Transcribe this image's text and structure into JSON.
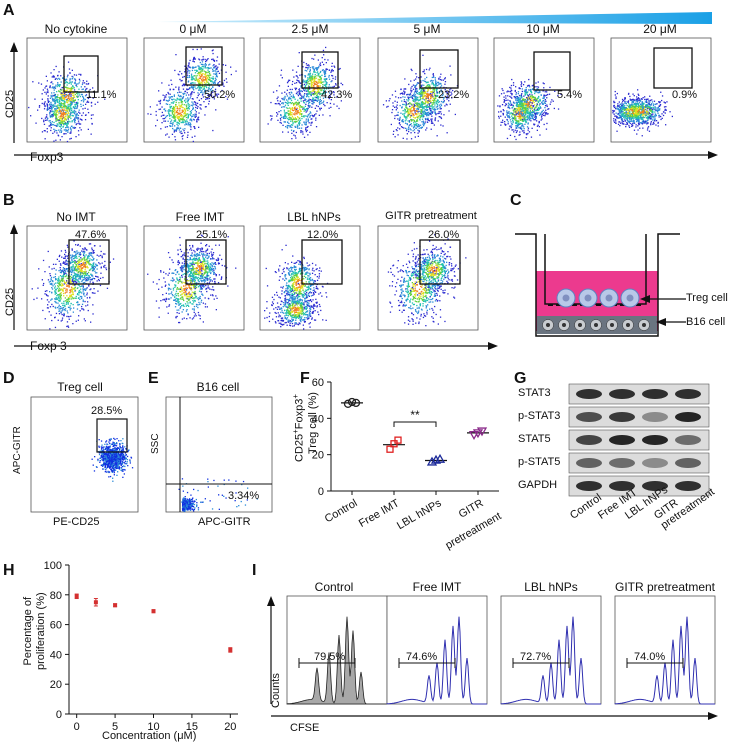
{
  "panel_labels": {
    "a": "A",
    "b": "B",
    "c": "C",
    "d": "D",
    "e": "E",
    "f": "F",
    "g": "G",
    "h": "H",
    "i": "I"
  },
  "panel_a": {
    "titles": [
      "No cytokine",
      "0 μM",
      "2.5 μM",
      "5 μM",
      "10 μM",
      "20 μM"
    ],
    "percents": [
      "11.1%",
      "50.2%",
      "42.3%",
      "23.2%",
      "5.4%",
      "0.9%"
    ],
    "ylabel": "CD25",
    "xlabel": "Foxp3"
  },
  "panel_b": {
    "titles": [
      "No IMT",
      "Free IMT",
      "LBL hNPs",
      "GITR pretreatment"
    ],
    "percents": [
      "47.6%",
      "25.1%",
      "12.0%",
      "26.0%"
    ],
    "ylabel": "CD25",
    "xlabel": "Foxp 3"
  },
  "panel_c": {
    "label_top": "Treg cell",
    "label_bottom": "B16 cell"
  },
  "panel_d": {
    "title": "Treg cell",
    "percent": "28.5%",
    "ylabel": "APC-GITR",
    "xlabel": "PE-CD25"
  },
  "panel_e": {
    "title": "B16 cell",
    "percent": "3.34%",
    "ylabel": "SSC",
    "xlabel": "APC-GITR"
  },
  "panel_g": {
    "rows": [
      "STAT3",
      "p-STAT3",
      "STAT5",
      "p-STAT5",
      "GAPDH"
    ],
    "cols": [
      "Control",
      "Free IMT",
      "LBL hNPs",
      "GITR pretreatment"
    ]
  },
  "panel_i": {
    "titles": [
      "Control",
      "Free IMT",
      "LBL hNPs",
      "GITR pretreatment"
    ],
    "percents": [
      "79.5%",
      "74.6%",
      "72.7%",
      "74.0%"
    ],
    "ylabel": "Counts",
    "xlabel": "CFSE"
  },
  "chart_data": [
    {
      "type": "scatter",
      "panel": "F",
      "title": "",
      "ylabel": "CD25+Foxp3+ Treg cell (%)",
      "ylabel_main": "CD25",
      "ylabel_sup1": "+",
      "ylabel_mid": "Foxp3",
      "ylabel_sup2": "+",
      "ylabel_line2": "Treg cell (%)",
      "categories": [
        "Control",
        "Free IMT",
        "LBL hNPs",
        "GITR\npretreatment"
      ],
      "cat_line1": [
        "Control",
        "Free IMT",
        "LBL hNPs",
        "GITR"
      ],
      "cat_line2": [
        "",
        "",
        "",
        "pretreatment"
      ],
      "ylim": [
        0,
        60
      ],
      "yticks": [
        "0",
        "20",
        "40",
        "60"
      ],
      "ytick_values": [
        0,
        20,
        40,
        60
      ],
      "means": [
        48.5,
        25.5,
        16.8,
        32
      ],
      "points": [
        [
          48,
          49,
          48.5
        ],
        [
          23,
          26,
          28
        ],
        [
          16,
          17,
          17.5
        ],
        [
          31,
          32,
          33
        ]
      ],
      "colors": [
        "#222222",
        "#e02020",
        "#1c2a9a",
        "#8a2a8a"
      ],
      "significance": "**"
    },
    {
      "type": "scatter",
      "panel": "H",
      "ylabel": "Percentage of proliferation (%)",
      "ylabel_line1": "Percentage of",
      "ylabel_line2": "proliferation (%)",
      "xlabel": "Concentration (μM)",
      "x": [
        0,
        2.5,
        5,
        10,
        20
      ],
      "y": [
        79,
        75,
        73,
        69,
        43
      ],
      "err": [
        1.5,
        2.5,
        1,
        1,
        1.5
      ],
      "xlim": [
        -1,
        21
      ],
      "ylim": [
        0,
        100
      ],
      "xticks": [
        "0",
        "5",
        "10",
        "15",
        "20"
      ],
      "xtick_values": [
        0,
        5,
        10,
        15,
        20
      ],
      "yticks": [
        "0",
        "20",
        "40",
        "60",
        "80",
        "100"
      ],
      "ytick_values": [
        0,
        20,
        40,
        60,
        80,
        100
      ],
      "color": "#d43030"
    }
  ]
}
